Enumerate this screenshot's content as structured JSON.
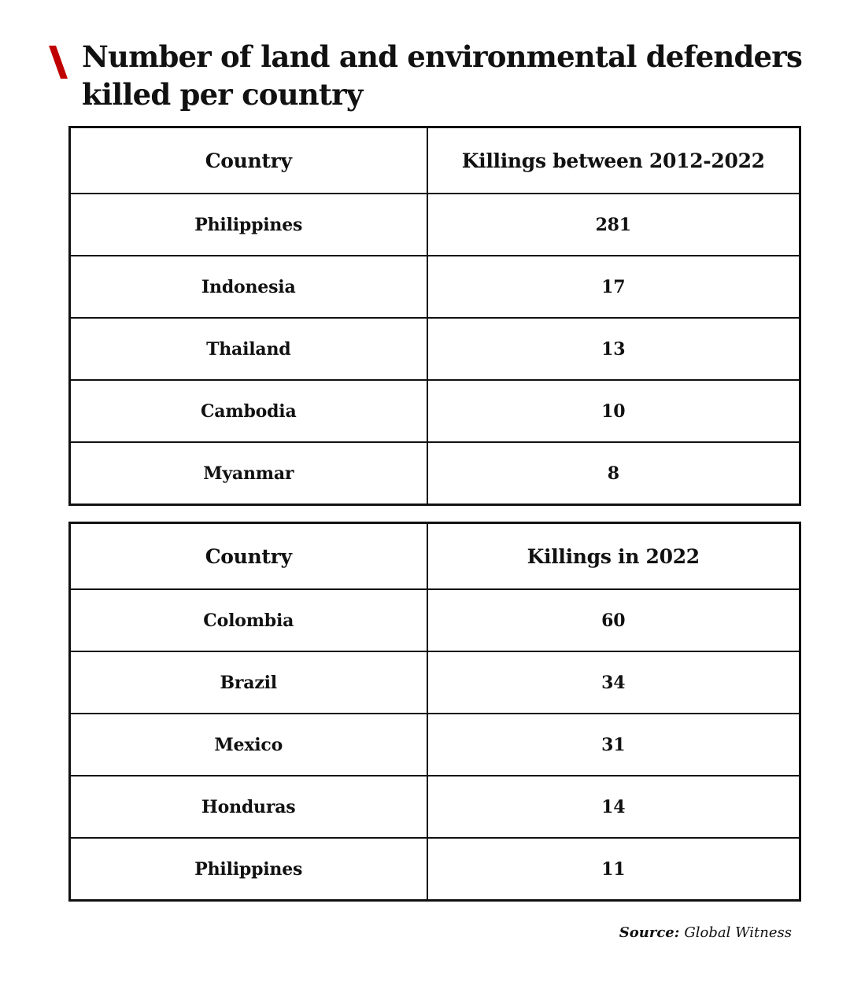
{
  "title": "Number of land and environmental defenders killed per country",
  "colors": {
    "accent": "#c00000",
    "text": "#111111",
    "border": "#111111",
    "background": "#ffffff"
  },
  "table1": {
    "headers": [
      "Country",
      "Killings between 2012-2022"
    ],
    "rows": [
      [
        "Philippines",
        "281"
      ],
      [
        "Indonesia",
        "17"
      ],
      [
        "Thailand",
        "13"
      ],
      [
        "Cambodia",
        "10"
      ],
      [
        "Myanmar",
        "8"
      ]
    ]
  },
  "table2": {
    "headers": [
      "Country",
      "Killings in 2022"
    ],
    "rows": [
      [
        "Colombia",
        "60"
      ],
      [
        "Brazil",
        "34"
      ],
      [
        "Mexico",
        "31"
      ],
      [
        "Honduras",
        "14"
      ],
      [
        "Philippines",
        "11"
      ]
    ]
  },
  "source": {
    "label": "Source:",
    "value": "Global Witness"
  }
}
